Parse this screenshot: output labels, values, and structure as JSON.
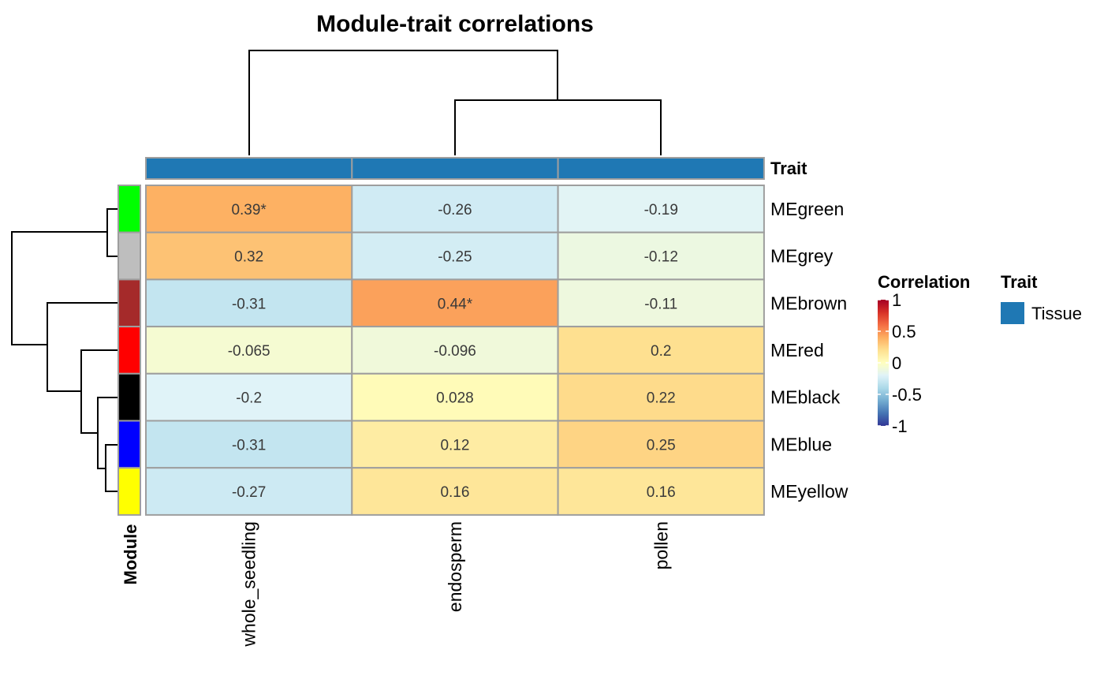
{
  "chart_data": {
    "type": "heatmap",
    "title": "Module-trait correlations",
    "columns": [
      "whole_seedling",
      "endosperm",
      "pollen"
    ],
    "rows": [
      "MEgreen",
      "MEgrey",
      "MEbrown",
      "MEred",
      "MEblack",
      "MEblue",
      "MEyellow"
    ],
    "row_colors": [
      "#00ff00",
      "#bebebe",
      "#a52a2a",
      "#ff0000",
      "#000000",
      "#0000ff",
      "#ffff00"
    ],
    "values": [
      [
        0.39,
        -0.26,
        -0.19
      ],
      [
        0.32,
        -0.25,
        -0.12
      ],
      [
        -0.31,
        0.44,
        -0.11
      ],
      [
        -0.065,
        -0.096,
        0.2
      ],
      [
        -0.2,
        0.028,
        0.22
      ],
      [
        -0.31,
        0.12,
        0.25
      ],
      [
        -0.27,
        0.16,
        0.16
      ]
    ],
    "labels": [
      [
        "0.39*",
        "-0.26",
        "-0.19"
      ],
      [
        "0.32",
        "-0.25",
        "-0.12"
      ],
      [
        "-0.31",
        "0.44*",
        "-0.11"
      ],
      [
        "-0.065",
        "-0.096",
        "0.2"
      ],
      [
        "-0.2",
        "0.028",
        "0.22"
      ],
      [
        "-0.31",
        "0.12",
        "0.25"
      ],
      [
        "-0.27",
        "0.16",
        "0.16"
      ]
    ],
    "row_annotation_title": "Module",
    "column_annotation": {
      "title": "Trait",
      "value": "Tissue",
      "color": "#1f78b4"
    },
    "color_scale": {
      "title": "Correlation",
      "range": [
        -1,
        1
      ],
      "ticks": [
        "1",
        "0.5",
        "0",
        "-0.5",
        "-1"
      ],
      "palette": "RdYlBu (reversed)"
    },
    "legend_placement": "right"
  }
}
